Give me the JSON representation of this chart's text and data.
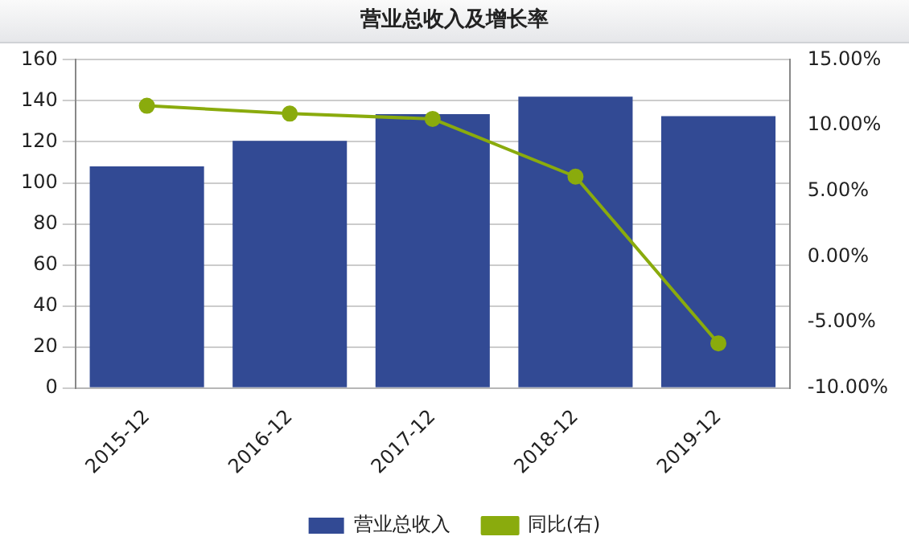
{
  "chart_data": {
    "type": "bar",
    "title": "营业总收入及增长率",
    "categories": [
      "2015-12",
      "2016-12",
      "2017-12",
      "2018-12",
      "2019-12"
    ],
    "series": [
      {
        "name": "营业总收入",
        "color": "#324a94",
        "values": [
          108,
          120.5,
          133.5,
          142,
          132.5
        ]
      },
      {
        "name": "同比(右)",
        "type": "line",
        "axis": "y2",
        "color": "#8aab0d",
        "values": [
          11.5,
          10.9,
          10.5,
          6.1,
          -6.6
        ]
      }
    ],
    "ylim": [
      0,
      160
    ],
    "yticks": [
      0,
      20,
      40,
      60,
      80,
      100,
      120,
      140,
      160
    ],
    "y2lim": [
      -10,
      15
    ],
    "y2ticks": [
      {
        "value": -10,
        "label": "-10.00%"
      },
      {
        "value": -5,
        "label": "-5.00%"
      },
      {
        "value": 0,
        "label": "0.00%"
      },
      {
        "value": 5,
        "label": "5.00%"
      },
      {
        "value": 10,
        "label": "10.00%"
      },
      {
        "value": 15,
        "label": "15.00%"
      }
    ],
    "grid": "y",
    "legend": "bottom",
    "marker": "circle"
  }
}
